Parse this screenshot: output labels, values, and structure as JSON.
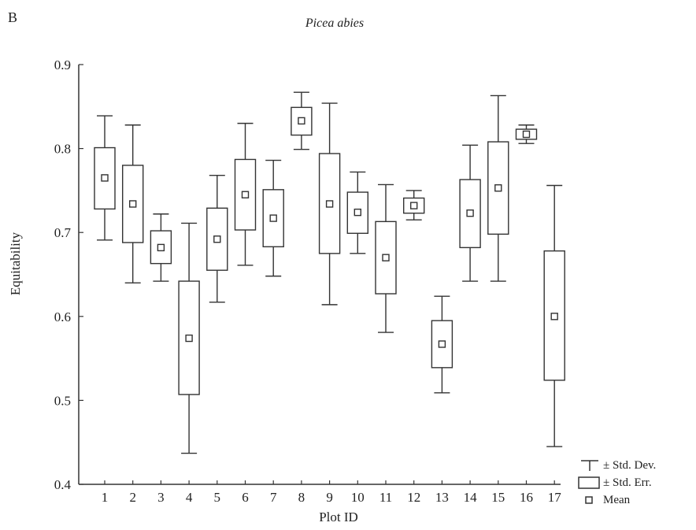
{
  "chart_data": {
    "type": "box",
    "panel_label": "B",
    "title": "Picea abies",
    "xlabel": "Plot ID",
    "ylabel": "Equitability",
    "ylim": [
      0.4,
      0.9
    ],
    "yticks": [
      "0.4",
      "0.5",
      "0.6",
      "0.7",
      "0.8",
      "0.9"
    ],
    "categories": [
      "1",
      "2",
      "3",
      "4",
      "5",
      "6",
      "7",
      "8",
      "9",
      "10",
      "11",
      "12",
      "13",
      "14",
      "15",
      "16",
      "17"
    ],
    "series": [
      {
        "mean": 0.765,
        "se_low": 0.728,
        "se_high": 0.801,
        "sd_low": 0.691,
        "sd_high": 0.839
      },
      {
        "mean": 0.734,
        "se_low": 0.688,
        "se_high": 0.78,
        "sd_low": 0.64,
        "sd_high": 0.828
      },
      {
        "mean": 0.682,
        "se_low": 0.663,
        "se_high": 0.702,
        "sd_low": 0.642,
        "sd_high": 0.722
      },
      {
        "mean": 0.574,
        "se_low": 0.507,
        "se_high": 0.642,
        "sd_low": 0.437,
        "sd_high": 0.711
      },
      {
        "mean": 0.692,
        "se_low": 0.655,
        "se_high": 0.729,
        "sd_low": 0.617,
        "sd_high": 0.768
      },
      {
        "mean": 0.745,
        "se_low": 0.703,
        "se_high": 0.787,
        "sd_low": 0.661,
        "sd_high": 0.83
      },
      {
        "mean": 0.717,
        "se_low": 0.683,
        "se_high": 0.751,
        "sd_low": 0.648,
        "sd_high": 0.786
      },
      {
        "mean": 0.833,
        "se_low": 0.816,
        "se_high": 0.849,
        "sd_low": 0.799,
        "sd_high": 0.867
      },
      {
        "mean": 0.734,
        "se_low": 0.675,
        "se_high": 0.794,
        "sd_low": 0.614,
        "sd_high": 0.854
      },
      {
        "mean": 0.724,
        "se_low": 0.699,
        "se_high": 0.748,
        "sd_low": 0.675,
        "sd_high": 0.772
      },
      {
        "mean": 0.67,
        "se_low": 0.627,
        "se_high": 0.713,
        "sd_low": 0.581,
        "sd_high": 0.757
      },
      {
        "mean": 0.732,
        "se_low": 0.723,
        "se_high": 0.741,
        "sd_low": 0.715,
        "sd_high": 0.75
      },
      {
        "mean": 0.567,
        "se_low": 0.539,
        "se_high": 0.595,
        "sd_low": 0.509,
        "sd_high": 0.624
      },
      {
        "mean": 0.723,
        "se_low": 0.682,
        "se_high": 0.763,
        "sd_low": 0.642,
        "sd_high": 0.804
      },
      {
        "mean": 0.753,
        "se_low": 0.698,
        "se_high": 0.808,
        "sd_low": 0.642,
        "sd_high": 0.863
      },
      {
        "mean": 0.817,
        "se_low": 0.811,
        "se_high": 0.823,
        "sd_low": 0.806,
        "sd_high": 0.828
      },
      {
        "mean": 0.6,
        "se_low": 0.524,
        "se_high": 0.678,
        "sd_low": 0.445,
        "sd_high": 0.756
      }
    ],
    "legend": {
      "placement": "bottom-right",
      "items": [
        "± Std. Dev.",
        "± Std. Err.",
        "Mean"
      ]
    },
    "grid": false,
    "colors": {
      "stroke": "#333333"
    }
  }
}
